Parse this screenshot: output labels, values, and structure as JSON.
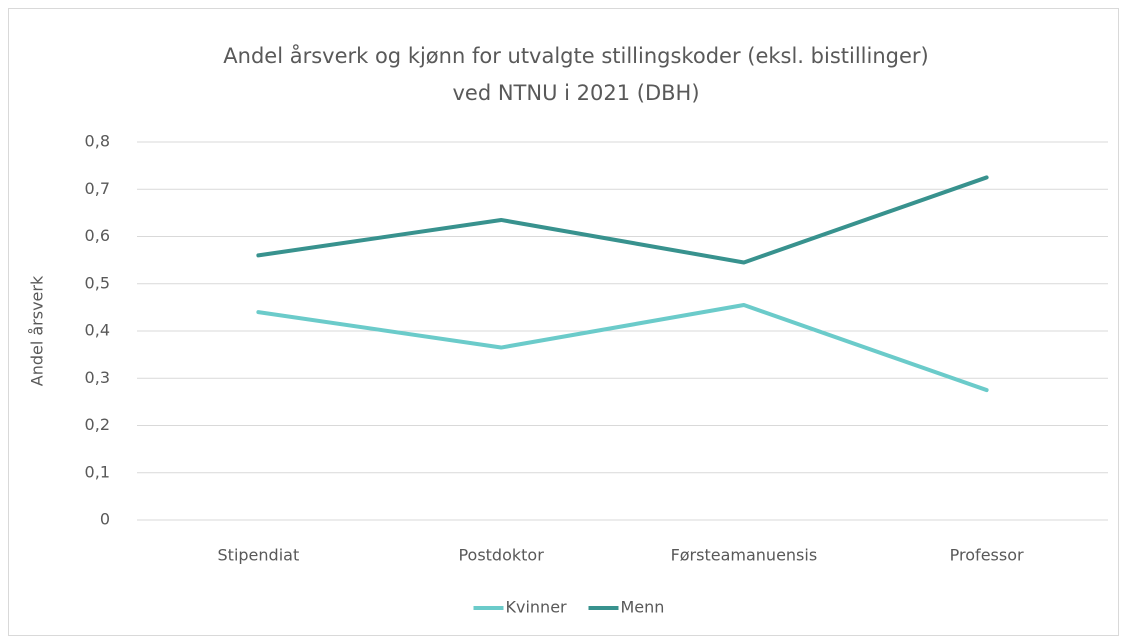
{
  "chart_data": {
    "type": "line",
    "title": [
      "Andel årsverk og kjønn for utvalgte stillingskoder (eksl.  bistillinger)",
      "ved NTNU i 2021 (DBH)"
    ],
    "y_label": "Andel årsverk",
    "categories": [
      "Stipendiat",
      "Postdoktor",
      "Førsteamanuensis",
      "Professor"
    ],
    "series": [
      {
        "name": "Kvinner",
        "color": "#6bcbca",
        "values": [
          0.44,
          0.365,
          0.455,
          0.275
        ]
      },
      {
        "name": "Menn",
        "color": "#38928e",
        "values": [
          0.56,
          0.635,
          0.545,
          0.725
        ]
      }
    ],
    "ylim": [
      0,
      0.8
    ],
    "yticks": [
      0,
      {
        "value": 0.1,
        "label": "0,1"
      },
      {
        "value": 0.2,
        "label": "0,2"
      },
      {
        "value": 0.3,
        "label": "0,3"
      },
      {
        "value": 0.4,
        "label": "0,4"
      },
      {
        "value": 0.5,
        "label": "0,5"
      },
      {
        "value": 0.6,
        "label": "0,6"
      },
      {
        "value": 0.7,
        "label": "0,7"
      },
      {
        "value": 0.8,
        "label": "0,8"
      }
    ],
    "grid": true,
    "legend": "bottom"
  }
}
